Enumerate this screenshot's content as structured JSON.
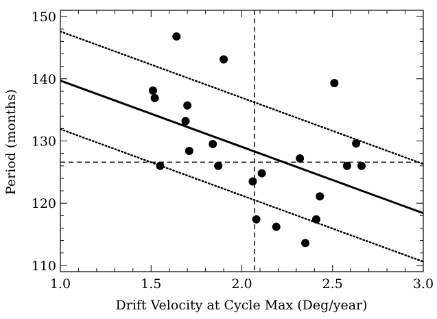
{
  "chart_data": {
    "type": "scatter",
    "title": "",
    "xlabel": "Drift Velocity at Cycle Max (Deg/year)",
    "ylabel": "Period (months)",
    "xlim": [
      1.0,
      3.0
    ],
    "ylim": [
      109,
      151
    ],
    "x_ticks": [
      1.0,
      1.5,
      2.0,
      2.5,
      3.0
    ],
    "x_tick_labels": [
      "1.0",
      "1.5",
      "2.0",
      "2.5",
      "3.0"
    ],
    "y_ticks": [
      110,
      120,
      130,
      140,
      150
    ],
    "y_tick_labels": [
      "110",
      "120",
      "130",
      "140",
      "150"
    ],
    "grid": false,
    "series": [
      {
        "kind": "points",
        "x": [
          1.51,
          1.52,
          1.55,
          1.64,
          1.69,
          1.7,
          1.71,
          1.84,
          1.87,
          1.9,
          2.06,
          2.08,
          2.11,
          2.19,
          2.32,
          2.35,
          2.41,
          2.43,
          2.51,
          2.58,
          2.63,
          2.66
        ],
        "y": [
          138.1,
          136.9,
          126.0,
          146.8,
          133.2,
          135.7,
          128.4,
          129.5,
          126.0,
          143.1,
          123.5,
          117.4,
          124.8,
          116.2,
          127.2,
          113.6,
          117.4,
          121.1,
          139.3,
          126.0,
          129.6,
          126.0
        ]
      }
    ],
    "fit_line": {
      "style": "solid",
      "x": [
        1.0,
        3.0
      ],
      "y": [
        139.7,
        118.4
      ]
    },
    "bound_lines": [
      {
        "style": "dotted",
        "x": [
          1.0,
          3.0
        ],
        "y": [
          147.6,
          126.3
        ]
      },
      {
        "style": "dotted",
        "x": [
          1.0,
          3.0
        ],
        "y": [
          131.9,
          110.6
        ]
      }
    ],
    "reference_lines": [
      {
        "style": "dashed",
        "orientation": "vertical",
        "x": 2.07
      },
      {
        "style": "dashed",
        "orientation": "horizontal",
        "y": 126.6
      }
    ]
  }
}
